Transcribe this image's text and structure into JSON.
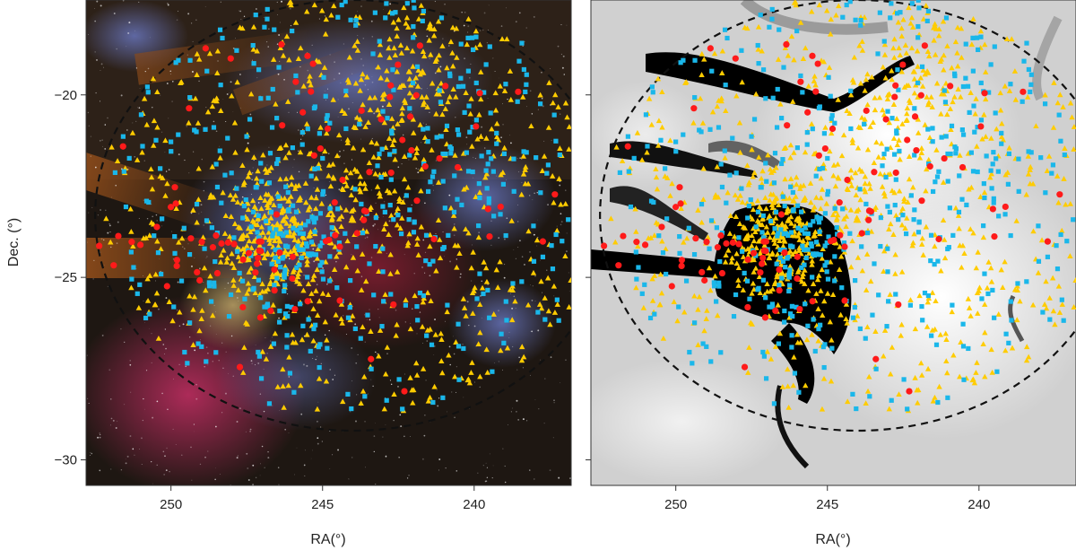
{
  "chart_data": [
    {
      "type": "scatter",
      "panel": "left",
      "background": "optical color image of the Ophiuchus/Upper Scorpius region (dust lanes, nebulae)",
      "xlabel": "RA(°)",
      "ylabel": "Dec. (°)",
      "xlim": [
        252.8,
        236.8
      ],
      "ylim": [
        -30.7,
        -17.4
      ],
      "x_ticks": [
        250,
        245,
        240
      ],
      "x_tick_labels": [
        "250",
        "245",
        "240"
      ],
      "y_ticks": [
        -20,
        -25,
        -30
      ],
      "y_tick_labels": [
        "−20",
        "−25",
        "−30"
      ],
      "boundary": {
        "shape": "dashed ellipse",
        "center": [
          244.0,
          -23.3
        ],
        "ra_semi_axis": 8.5,
        "dec_semi_axis": 5.9
      },
      "marker_colors": {
        "triangle": "#ffcc00",
        "square": "#1ab7ea",
        "circle": "#ff1a1a"
      }
    },
    {
      "type": "scatter",
      "panel": "right",
      "background": "grayscale dust extinction / column-density map (inverted, dark = high)",
      "xlabel": "RA(°)",
      "ylabel": "",
      "xlim": [
        252.8,
        236.8
      ],
      "ylim": [
        -30.7,
        -17.4
      ],
      "x_ticks": [
        250,
        245,
        240
      ],
      "x_tick_labels": [
        "250",
        "245",
        "240"
      ],
      "y_ticks": [
        -20,
        -25,
        -30
      ],
      "y_tick_labels": [],
      "boundary": {
        "shape": "dashed ellipse",
        "center": [
          244.0,
          -23.3
        ],
        "ra_semi_axis": 8.5,
        "dec_semi_axis": 5.9
      },
      "marker_colors": {
        "triangle": "#ffcc00",
        "square": "#1ab7ea",
        "circle": "#ff1a1a"
      }
    }
  ],
  "axis_text": {
    "ylabel": "Dec. (°)",
    "xlabel_left": "RA(°)",
    "xlabel_right": "RA(°)"
  }
}
